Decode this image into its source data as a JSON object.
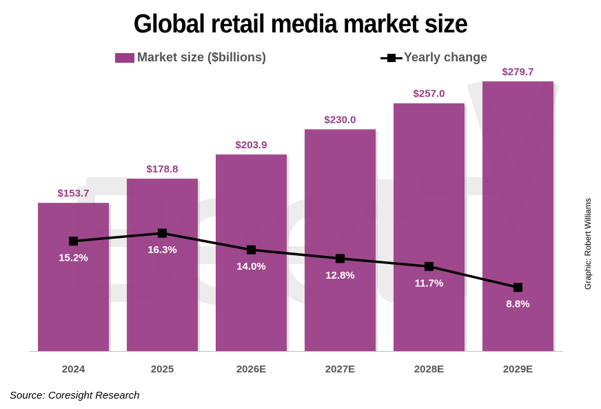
{
  "chart_data": {
    "type": "bar",
    "title": "Global retail media market size",
    "categories": [
      "2024",
      "2025",
      "2026E",
      "2027E",
      "2028E",
      "2029E"
    ],
    "series": [
      {
        "name": "Market size ($billions)",
        "type": "bar",
        "axis": "primary",
        "values": [
          153.7,
          178.8,
          203.9,
          230.0,
          257.0,
          279.7
        ],
        "labels": [
          "$153.7",
          "$178.8",
          "$203.9",
          "$230.0",
          "$257.0",
          "$279.7"
        ],
        "color": "#9a3c87"
      },
      {
        "name": "Yearly change",
        "type": "line",
        "axis": "secondary",
        "values": [
          15.2,
          16.3,
          14.0,
          12.8,
          11.7,
          8.8
        ],
        "labels": [
          "15.2%",
          "16.3%",
          "14.0%",
          "12.8%",
          "11.7%",
          "8.8%"
        ],
        "color": "#000000"
      }
    ],
    "ylim": [
      0,
      300
    ],
    "y2lim": [
      0,
      40
    ],
    "xlabel": "",
    "ylabel": "",
    "grid": false,
    "legend": "top",
    "bar_label_color": "#9a3c87",
    "line_label_color": "#ffffff"
  },
  "source": "Source: Coresight Research",
  "credit": "Graphic: Robert Williams",
  "watermark": "BeetTV"
}
